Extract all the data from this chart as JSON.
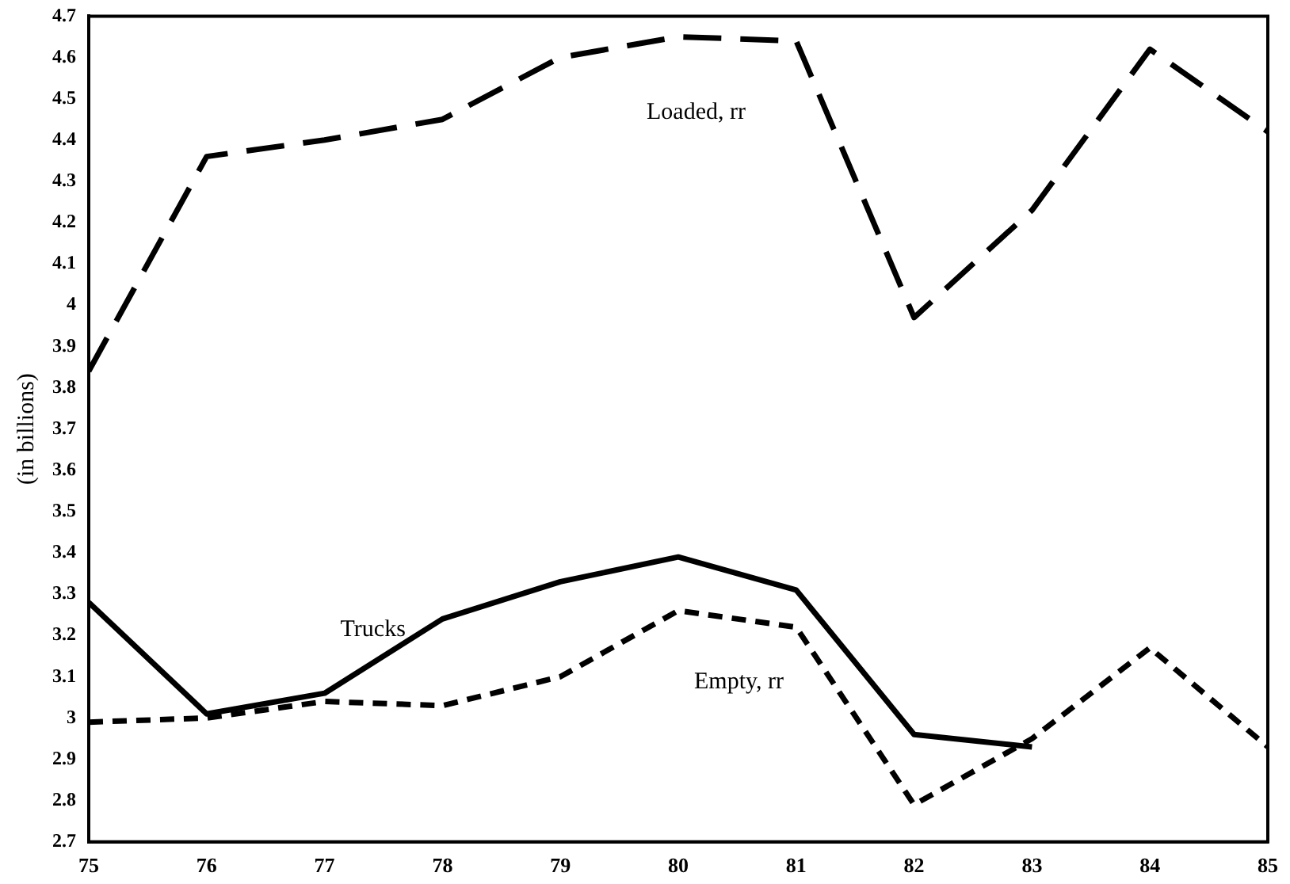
{
  "chart_data": {
    "type": "line",
    "ylabel": "(in billions)",
    "x": [
      75,
      76,
      77,
      78,
      79,
      80,
      81,
      82,
      83,
      84,
      85
    ],
    "xlim": [
      75,
      85
    ],
    "xticks": [
      75,
      76,
      77,
      78,
      79,
      80,
      81,
      82,
      83,
      84,
      85
    ],
    "ylim": [
      2.7,
      4.7
    ],
    "yticks": [
      2.7,
      2.8,
      2.9,
      3,
      3.1,
      3.2,
      3.3,
      3.4,
      3.5,
      3.6,
      3.7,
      3.8,
      3.9,
      4,
      4.1,
      4.2,
      4.3,
      4.4,
      4.5,
      4.6,
      4.7
    ],
    "grid": false,
    "legend": false,
    "marker": "none",
    "series": [
      {
        "name": "Loaded, rr",
        "color": "#000000",
        "line_style": "dashed",
        "values": [
          3.84,
          4.36,
          4.4,
          4.45,
          4.6,
          4.65,
          4.64,
          3.97,
          4.23,
          4.62,
          4.42
        ]
      },
      {
        "name": "Trucks",
        "color": "#000000",
        "line_style": "solid",
        "values": [
          3.28,
          3.01,
          3.06,
          3.24,
          3.33,
          3.39,
          3.31,
          2.96,
          2.93,
          null,
          null
        ]
      },
      {
        "name": "Empty, rr",
        "color": "#000000",
        "line_style": "dotted",
        "values": [
          2.99,
          3.0,
          3.04,
          3.03,
          3.1,
          3.26,
          3.22,
          2.79,
          2.95,
          3.17,
          2.93
        ]
      }
    ]
  }
}
